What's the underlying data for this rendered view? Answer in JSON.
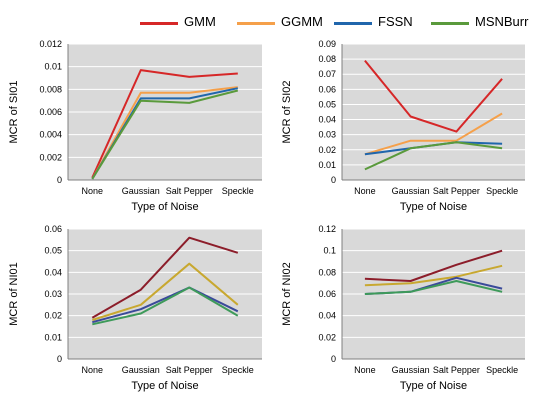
{
  "legend": [
    {
      "name": "GMM",
      "color": "#d62728"
    },
    {
      "name": "GGMM",
      "color": "#f5a04a"
    },
    {
      "name": "FSSN",
      "color": "#2066ac"
    },
    {
      "name": "MSNBurr",
      "color": "#5a9a3c"
    }
  ],
  "chart_data": [
    {
      "type": "line",
      "categories": [
        "None",
        "Gaussian",
        "Salt Pepper",
        "Speckle"
      ],
      "xlabel": "Type of Noise",
      "ylabel": "MCR of SI01",
      "ylim": [
        0,
        0.012
      ],
      "yticks": [
        "0",
        "0.002",
        "0.004",
        "0.006",
        "0.008",
        "0.01",
        "0.012"
      ],
      "grid": true,
      "series": [
        {
          "name": "GMM",
          "color": "#d62728",
          "values": [
            0.0002,
            0.0097,
            0.0091,
            0.0094
          ]
        },
        {
          "name": "GGMM",
          "color": "#f5a04a",
          "values": [
            0.0001,
            0.0077,
            0.0077,
            0.0082
          ]
        },
        {
          "name": "FSSN",
          "color": "#2066ac",
          "values": [
            0.0001,
            0.0072,
            0.0072,
            0.0081
          ]
        },
        {
          "name": "MSNBurr",
          "color": "#5a9a3c",
          "values": [
            0.0001,
            0.007,
            0.0068,
            0.0079
          ]
        }
      ]
    },
    {
      "type": "line",
      "categories": [
        "None",
        "Gaussian",
        "Salt Pepper",
        "Speckle"
      ],
      "xlabel": "Type of Noise",
      "ylabel": "MCR of SI02",
      "ylim": [
        0,
        0.09
      ],
      "yticks": [
        "0",
        "0.01",
        "0.02",
        "0.03",
        "0.04",
        "0.05",
        "0.06",
        "0.07",
        "0.08",
        "0.09"
      ],
      "grid": true,
      "series": [
        {
          "name": "GMM",
          "color": "#d62728",
          "values": [
            0.079,
            0.042,
            0.032,
            0.067
          ]
        },
        {
          "name": "GGMM",
          "color": "#f5a04a",
          "values": [
            0.017,
            0.026,
            0.026,
            0.044
          ]
        },
        {
          "name": "FSSN",
          "color": "#2066ac",
          "values": [
            0.017,
            0.021,
            0.025,
            0.024
          ]
        },
        {
          "name": "MSNBurr",
          "color": "#5a9a3c",
          "values": [
            0.007,
            0.021,
            0.025,
            0.021
          ]
        }
      ]
    },
    {
      "type": "line",
      "categories": [
        "None",
        "Gaussian",
        "Salt Pepper",
        "Speckle"
      ],
      "xlabel": "Type of Noise",
      "ylabel": "MCR of NI01",
      "ylim": [
        0,
        0.06
      ],
      "yticks": [
        "0",
        "0.01",
        "0.02",
        "0.03",
        "0.04",
        "0.05",
        "0.06"
      ],
      "grid": true,
      "series": [
        {
          "name": "GMM",
          "color": "#8c1d2a",
          "values": [
            0.019,
            0.032,
            0.056,
            0.049
          ]
        },
        {
          "name": "GGMM",
          "color": "#c8a830",
          "values": [
            0.018,
            0.025,
            0.044,
            0.025
          ]
        },
        {
          "name": "FSSN",
          "color": "#3a4a9a",
          "values": [
            0.017,
            0.023,
            0.033,
            0.022
          ]
        },
        {
          "name": "MSNBurr",
          "color": "#3e9a5a",
          "values": [
            0.016,
            0.021,
            0.033,
            0.02
          ]
        }
      ]
    },
    {
      "type": "line",
      "categories": [
        "None",
        "Gaussian",
        "Salt Pepper",
        "Speckle"
      ],
      "xlabel": "Type of Noise",
      "ylabel": "MCR of NI02",
      "ylim": [
        0,
        0.12
      ],
      "yticks": [
        "0",
        "0.02",
        "0.04",
        "0.06",
        "0.08",
        "0.1",
        "0.12"
      ],
      "grid": true,
      "series": [
        {
          "name": "GMM",
          "color": "#8c1d2a",
          "values": [
            0.074,
            0.072,
            0.087,
            0.1
          ]
        },
        {
          "name": "GGMM",
          "color": "#c8a830",
          "values": [
            0.068,
            0.07,
            0.076,
            0.086
          ]
        },
        {
          "name": "FSSN",
          "color": "#3a4a9a",
          "values": [
            0.06,
            0.062,
            0.075,
            0.065
          ]
        },
        {
          "name": "MSNBurr",
          "color": "#3e9a5a",
          "values": [
            0.06,
            0.062,
            0.072,
            0.062
          ]
        }
      ]
    }
  ]
}
